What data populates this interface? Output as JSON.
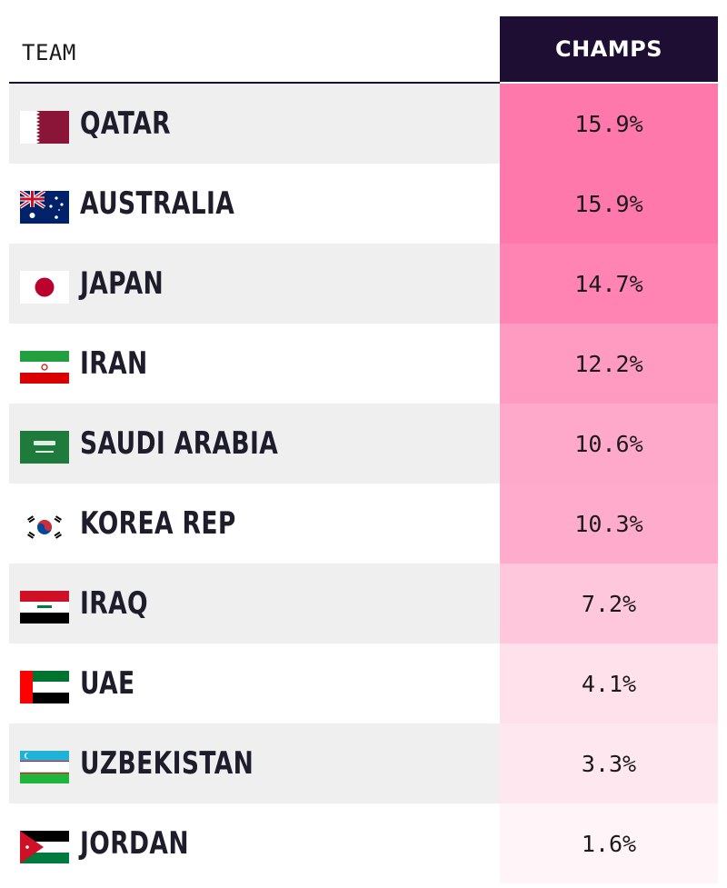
{
  "header": {
    "team_label": "TEAM",
    "champs_label": "CHAMPS"
  },
  "colors": {
    "header_bg": "#1e0e33",
    "row_alt": "#efefef",
    "accent_max": "#ff78ac"
  },
  "rows": [
    {
      "team": "QATAR",
      "flag": "qatar-flag-icon",
      "champs": "15.9%"
    },
    {
      "team": "AUSTRALIA",
      "flag": "australia-flag-icon",
      "champs": "15.9%"
    },
    {
      "team": "JAPAN",
      "flag": "japan-flag-icon",
      "champs": "14.7%"
    },
    {
      "team": "IRAN",
      "flag": "iran-flag-icon",
      "champs": "12.2%"
    },
    {
      "team": "SAUDI ARABIA",
      "flag": "saudi-arabia-flag-icon",
      "champs": "10.6%"
    },
    {
      "team": "KOREA REP",
      "flag": "korea-rep-flag-icon",
      "champs": "10.3%"
    },
    {
      "team": "IRAQ",
      "flag": "iraq-flag-icon",
      "champs": "7.2%"
    },
    {
      "team": "UAE",
      "flag": "uae-flag-icon",
      "champs": "4.1%"
    },
    {
      "team": "UZBEKISTAN",
      "flag": "uzbekistan-flag-icon",
      "champs": "3.3%"
    },
    {
      "team": "JORDAN",
      "flag": "jordan-flag-icon",
      "champs": "1.6%"
    }
  ],
  "chart_data": {
    "type": "table",
    "columns": [
      "TEAM",
      "CHAMPS"
    ],
    "categories": [
      "QATAR",
      "AUSTRALIA",
      "JAPAN",
      "IRAN",
      "SAUDI ARABIA",
      "KOREA REP",
      "IRAQ",
      "UAE",
      "UZBEKISTAN",
      "JORDAN"
    ],
    "values": [
      15.9,
      15.9,
      14.7,
      12.2,
      10.6,
      10.3,
      7.2,
      4.1,
      3.3,
      1.6
    ]
  }
}
